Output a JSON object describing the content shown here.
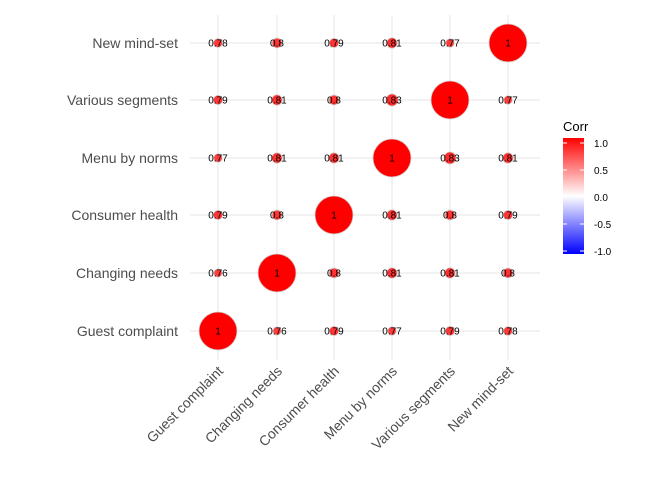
{
  "chart_data": {
    "type": "heatmap",
    "style": "circle",
    "variables": [
      "Guest complaint",
      "Changing needs",
      "Consumer health",
      "Menu by norms",
      "Various segments",
      "New mind-set"
    ],
    "matrix": [
      [
        1,
        0.76,
        0.79,
        0.77,
        0.79,
        0.78
      ],
      [
        0.76,
        1,
        0.8,
        0.81,
        0.81,
        0.8
      ],
      [
        0.79,
        0.8,
        1,
        0.81,
        0.8,
        0.79
      ],
      [
        0.77,
        0.81,
        0.81,
        1,
        0.83,
        0.81
      ],
      [
        0.79,
        0.81,
        0.8,
        0.83,
        1,
        0.77
      ],
      [
        0.78,
        0.8,
        0.79,
        0.81,
        0.77,
        1
      ]
    ],
    "legend": {
      "title": "Corr",
      "placement": "right",
      "ticks": [
        {
          "value": 1,
          "label": "1.0"
        },
        {
          "value": 0.5,
          "label": "0.5"
        },
        {
          "value": 0,
          "label": "0.0"
        },
        {
          "value": -0.5,
          "label": "-0.5"
        },
        {
          "value": -1,
          "label": "-1.0"
        }
      ],
      "colors": {
        "low": "#0000ff",
        "mid": "#ffffff",
        "high": "#ff0000"
      }
    },
    "grid": true,
    "x_axis_labels_rotated": true,
    "xlabel": "",
    "ylabel": "",
    "title": ""
  }
}
